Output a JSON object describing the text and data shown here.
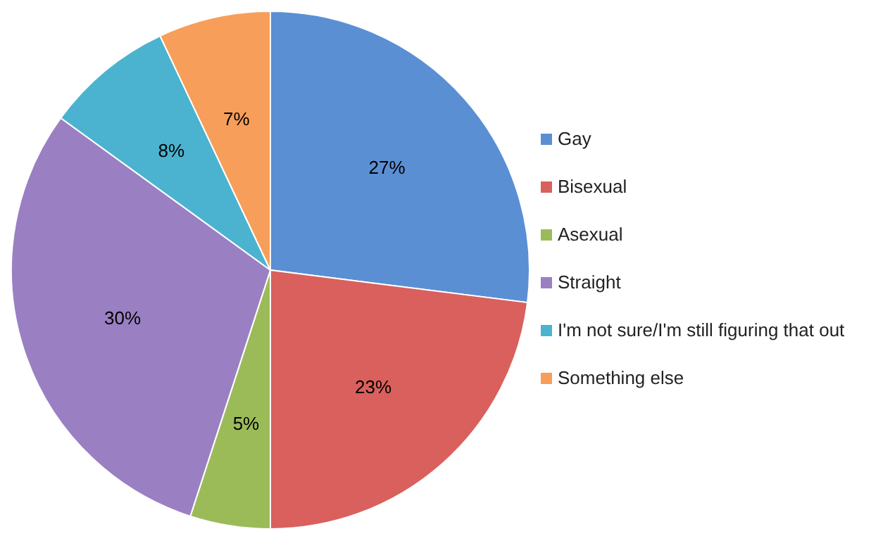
{
  "chart_data": {
    "type": "pie",
    "categories": [
      "Gay",
      "Bisexual",
      "Asexual",
      "Straight",
      "I'm not sure/I'm still figuring that out",
      "Something else"
    ],
    "values": [
      27,
      23,
      5,
      30,
      8,
      7
    ],
    "value_labels": [
      "27%",
      "23%",
      "5%",
      "30%",
      "8%",
      "7%"
    ],
    "colors": [
      "#5b8fd4",
      "#d9605c",
      "#9bbb59",
      "#9a80c2",
      "#4bb3cf",
      "#f79e5a"
    ],
    "legend": "right"
  }
}
